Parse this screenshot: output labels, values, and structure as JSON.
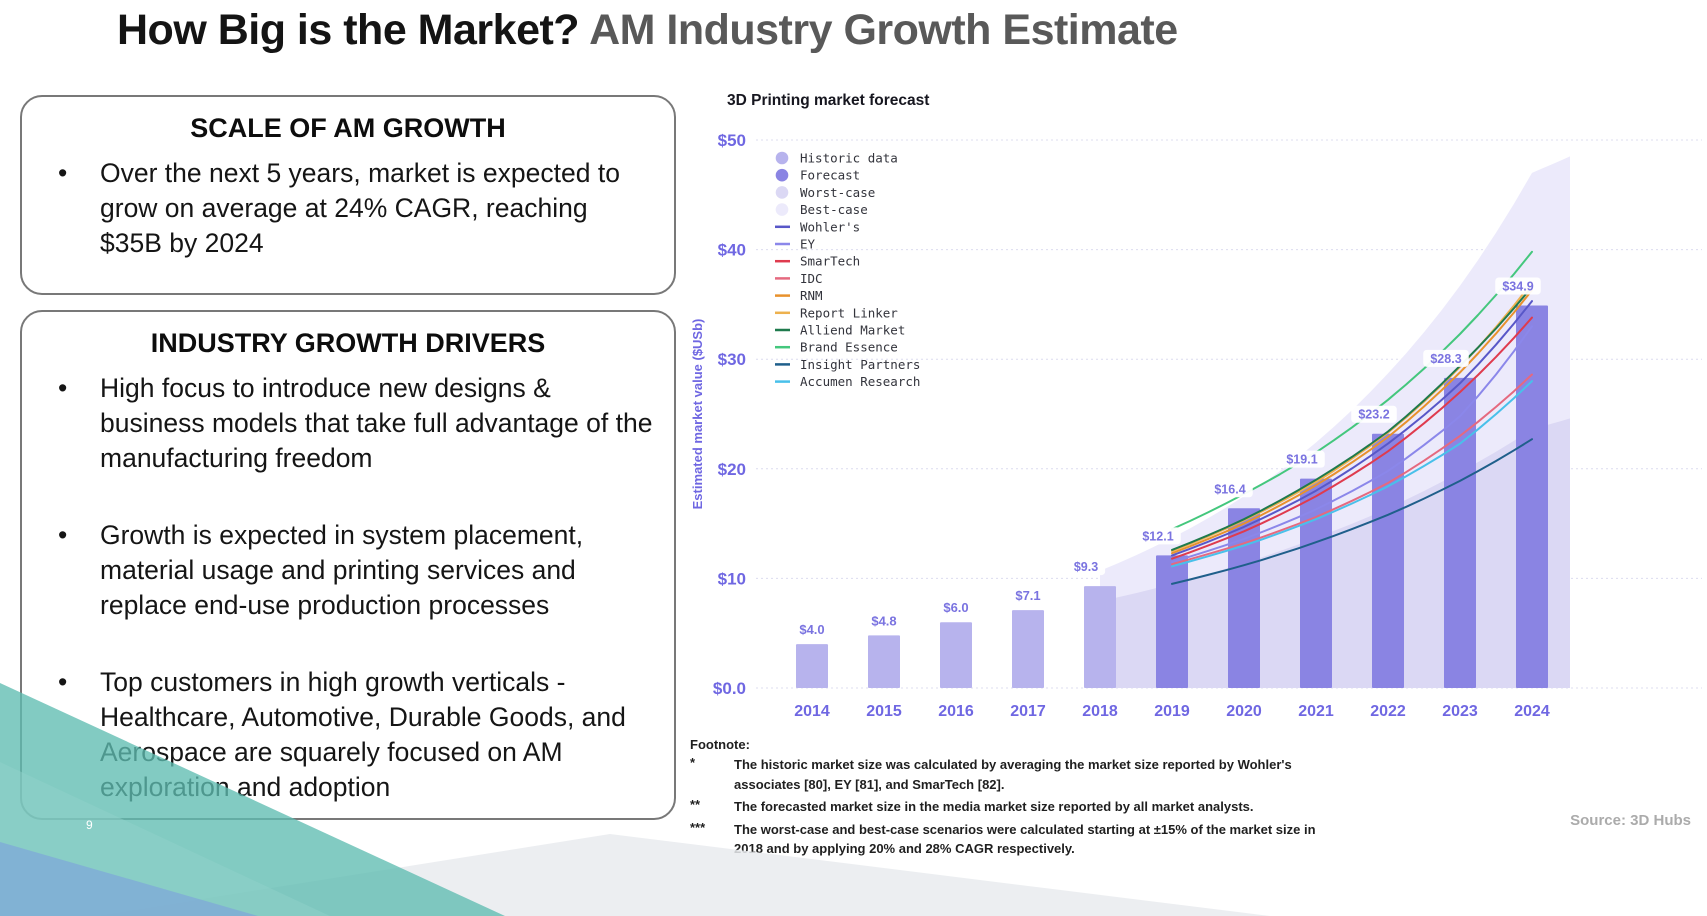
{
  "slide": {
    "title": {
      "black": "How Big is the Market?",
      "gray": "AM Industry Growth Estimate"
    },
    "page_number": "9",
    "source": "Source: 3D Hubs"
  },
  "boxes": [
    {
      "heading": "SCALE OF AM GROWTH",
      "bullets": [
        "Over the next 5 years, market is expected to grow on average at 24% CAGR, reaching $35B by 2024"
      ]
    },
    {
      "heading": "INDUSTRY GROWTH DRIVERS",
      "bullets": [
        "High focus to introduce new designs & business models that take full advantage of the manufacturing freedom",
        "Growth is expected in system placement, material usage and printing services and replace end-use production processes",
        "Top customers in high growth verticals - Healthcare, Automotive, Durable Goods, and Aerospace are squarely focused on AM exploration and adoption"
      ]
    }
  ],
  "footnote": {
    "label": "Footnote:",
    "items": [
      {
        "marker": "*",
        "text": "The historic market size was calculated by averaging the market size reported by Wohler's associates [80], EY [81], and SmarTech [82]."
      },
      {
        "marker": "**",
        "text": "The forecasted market size in the media market size reported by all market analysts."
      },
      {
        "marker": "***",
        "text": "The worst-case and best-case scenarios were calculated starting at ±15% of the market size in 2018 and by applying 20% and 28% CAGR respectively."
      }
    ]
  },
  "chart_data": {
    "type": "bar+line+area",
    "title": "3D Printing market forecast",
    "ylabel": "Estimated market value ($USb)",
    "ylim": [
      0,
      50
    ],
    "axis_color": "#6f67e2",
    "grid_color": "#dcdcef",
    "label_color": "#7a73e0",
    "yticks": [
      {
        "value": 50,
        "label": "$50"
      },
      {
        "value": 40,
        "label": "$40"
      },
      {
        "value": 30,
        "label": "$30"
      },
      {
        "value": 20,
        "label": "$20"
      },
      {
        "value": 10,
        "label": "$10"
      },
      {
        "value": 0,
        "label": "$0.0"
      }
    ],
    "years": [
      "2014",
      "2015",
      "2016",
      "2017",
      "2018",
      "2019",
      "2020",
      "2021",
      "2022",
      "2023",
      "2024"
    ],
    "bar_colors": {
      "historic": "#b7b3ed",
      "forecast": "#8a84e3"
    },
    "bars": [
      {
        "year": "2014",
        "value": 4.0,
        "label": "$4.0",
        "kind": "historic",
        "chip": false
      },
      {
        "year": "2015",
        "value": 4.8,
        "label": "$4.8",
        "kind": "historic",
        "chip": false
      },
      {
        "year": "2016",
        "value": 6.0,
        "label": "$6.0",
        "kind": "historic",
        "chip": false
      },
      {
        "year": "2017",
        "value": 7.1,
        "label": "$7.1",
        "kind": "historic",
        "chip": false
      },
      {
        "year": "2018",
        "value": 9.3,
        "label": "$9.3",
        "kind": "historic",
        "chip": true
      },
      {
        "year": "2019",
        "value": 12.1,
        "label": "$12.1",
        "kind": "forecast",
        "chip": true
      },
      {
        "year": "2020",
        "value": 16.4,
        "label": "$16.4",
        "kind": "forecast",
        "chip": true
      },
      {
        "year": "2021",
        "value": 19.1,
        "label": "$19.1",
        "kind": "forecast",
        "chip": true
      },
      {
        "year": "2022",
        "value": 23.2,
        "label": "$23.2",
        "kind": "forecast",
        "chip": true
      },
      {
        "year": "2023",
        "value": 28.3,
        "label": "$28.3",
        "kind": "forecast",
        "chip": true
      },
      {
        "year": "2024",
        "value": 34.9,
        "label": "$34.9",
        "kind": "forecast",
        "chip": true
      }
    ],
    "legend_bubbles": [
      {
        "label": "Historic data",
        "color": "#b7b3ed"
      },
      {
        "label": "Forecast",
        "color": "#8a84e3"
      },
      {
        "label": "Worst-case",
        "color": "#dbd8f4"
      },
      {
        "label": "Best-case",
        "color": "#eceafb"
      }
    ],
    "areas": [
      {
        "name": "Best-case",
        "color": "#eceafb",
        "start_year": "2018",
        "values": [
          10.7,
          13.7,
          17.5,
          22.4,
          28.7,
          36.7,
          47.0
        ],
        "edge_value": 48.5
      },
      {
        "name": "Worst-case",
        "color": "#dbd8f4",
        "start_year": "2018",
        "values": [
          7.9,
          9.5,
          11.4,
          13.7,
          16.4,
          19.7,
          23.6
        ],
        "edge_value": 24.6
      }
    ],
    "series_start_year": "2019",
    "series": [
      {
        "name": "Wohler's",
        "color": "#5857c8",
        "values": [
          12.1,
          14.7,
          18.0,
          22.3,
          27.8,
          35.3
        ]
      },
      {
        "name": "EY",
        "color": "#8b87ea",
        "values": [
          11.5,
          13.6,
          16.3,
          19.8,
          24.8,
          33.0
        ]
      },
      {
        "name": "SmarTech",
        "color": "#df3b4e",
        "values": [
          11.8,
          14.3,
          17.5,
          21.6,
          27.0,
          33.8
        ]
      },
      {
        "name": "IDC",
        "color": "#e5697f",
        "values": [
          11.3,
          13.2,
          15.6,
          18.7,
          23.0,
          28.6
        ]
      },
      {
        "name": "RNM",
        "color": "#e8912d",
        "values": [
          12.3,
          15.0,
          18.5,
          22.9,
          28.8,
          36.3
        ]
      },
      {
        "name": "Report Linker",
        "color": "#edb14e",
        "values": [
          12.5,
          15.3,
          18.8,
          23.3,
          29.3,
          37.0
        ]
      },
      {
        "name": "Alliend Market",
        "color": "#1f7a4d",
        "values": [
          12.6,
          15.4,
          19.0,
          23.4,
          29.4,
          36.6
        ]
      },
      {
        "name": "Brand Essence",
        "color": "#44c77d",
        "values": [
          14.5,
          17.7,
          21.5,
          26.3,
          32.3,
          39.8
        ]
      },
      {
        "name": "Insight Partners",
        "color": "#1f5f8b",
        "values": [
          9.5,
          11.2,
          13.3,
          15.8,
          18.9,
          22.7
        ]
      },
      {
        "name": "Accumen Research",
        "color": "#49c0ea",
        "values": [
          11.1,
          13.0,
          15.4,
          18.4,
          22.3,
          28.0
        ]
      }
    ]
  }
}
